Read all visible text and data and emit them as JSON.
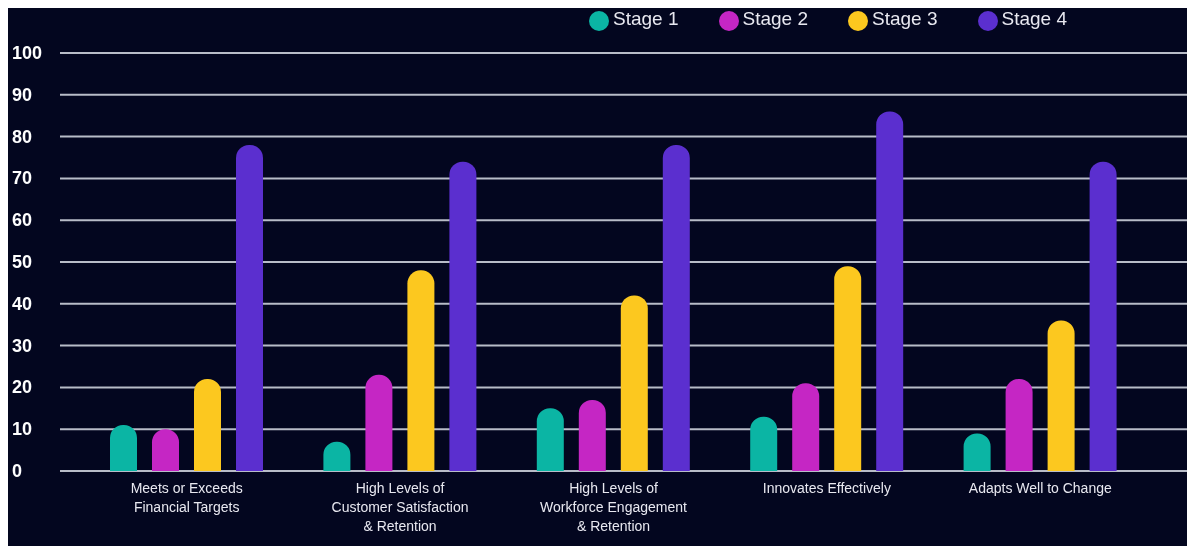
{
  "chart_data": {
    "type": "bar",
    "categories": [
      "Meets or Exceeds Financial Targets",
      "High Levels of Customer Satisfaction & Retention",
      "High Levels of Workforce Engagement & Retention",
      "Innovates Effectively",
      "Adapts Well to Change"
    ],
    "series": [
      {
        "name": "Stage 1",
        "color": "#0bb5a4",
        "values": [
          11,
          7,
          15,
          13,
          9
        ]
      },
      {
        "name": "Stage 2",
        "color": "#c526c4",
        "values": [
          10,
          23,
          17,
          21,
          22
        ]
      },
      {
        "name": "Stage 3",
        "color": "#fcc81f",
        "values": [
          22,
          48,
          42,
          49,
          36
        ]
      },
      {
        "name": "Stage 4",
        "color": "#5b2fcf",
        "values": [
          78,
          74,
          78,
          86,
          74
        ]
      }
    ],
    "ylim": [
      0,
      100
    ],
    "yticks": [
      0,
      10,
      20,
      30,
      40,
      50,
      60,
      70,
      80,
      90,
      100
    ],
    "grid": "y",
    "legend": "top right"
  }
}
